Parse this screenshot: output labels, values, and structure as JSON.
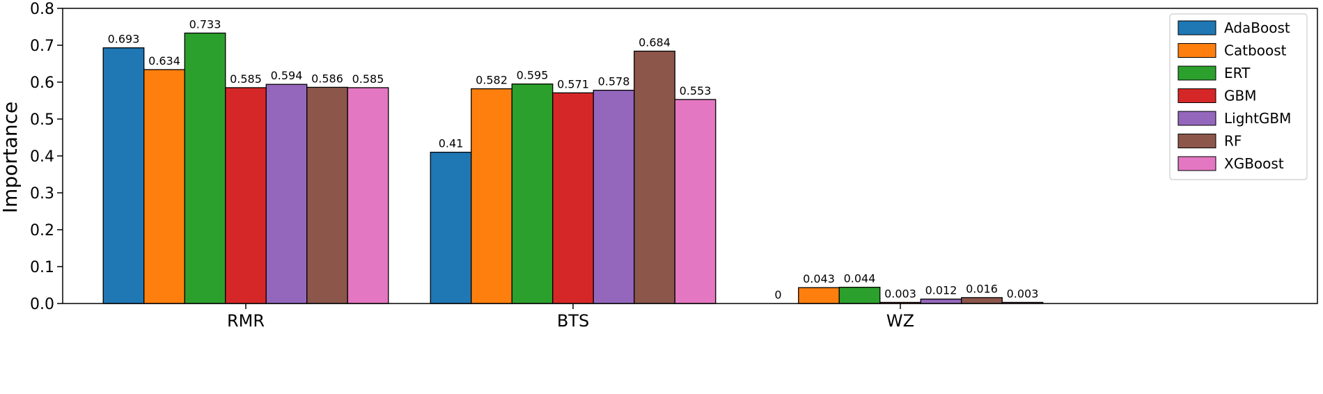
{
  "chart_data": {
    "type": "bar",
    "title": "",
    "xlabel": "",
    "ylabel": "Importance",
    "ylim": [
      0,
      0.8
    ],
    "yticks": [
      "0.0",
      "0.1",
      "0.2",
      "0.3",
      "0.4",
      "0.5",
      "0.6",
      "0.7",
      "0.8"
    ],
    "categories": [
      "RMR",
      "BTS",
      "WZ"
    ],
    "legend_position": "top-right",
    "grid": false,
    "series": [
      {
        "name": "AdaBoost",
        "color": "#1f77b4",
        "values": [
          0.693,
          0.41,
          0
        ],
        "labels": [
          "0.693",
          "0.41",
          "0"
        ]
      },
      {
        "name": "Catboost",
        "color": "#ff7f0e",
        "values": [
          0.634,
          0.582,
          0.043
        ],
        "labels": [
          "0.634",
          "0.582",
          "0.043"
        ]
      },
      {
        "name": "ERT",
        "color": "#2ca02c",
        "values": [
          0.733,
          0.595,
          0.044
        ],
        "labels": [
          "0.733",
          "0.595",
          "0.044"
        ]
      },
      {
        "name": "GBM",
        "color": "#d62728",
        "values": [
          0.585,
          0.571,
          0.003
        ],
        "labels": [
          "0.585",
          "0.571",
          "0.003"
        ]
      },
      {
        "name": "LightGBM",
        "color": "#9467bd",
        "values": [
          0.594,
          0.578,
          0.012
        ],
        "labels": [
          "0.594",
          "0.578",
          "0.012"
        ]
      },
      {
        "name": "RF",
        "color": "#8c564b",
        "values": [
          0.586,
          0.684,
          0.016
        ],
        "labels": [
          "0.586",
          "0.684",
          "0.016"
        ]
      },
      {
        "name": "XGBoost",
        "color": "#e377c2",
        "values": [
          0.585,
          0.553,
          0.003
        ],
        "labels": [
          "0.585",
          "0.553",
          "0.003"
        ]
      }
    ]
  }
}
